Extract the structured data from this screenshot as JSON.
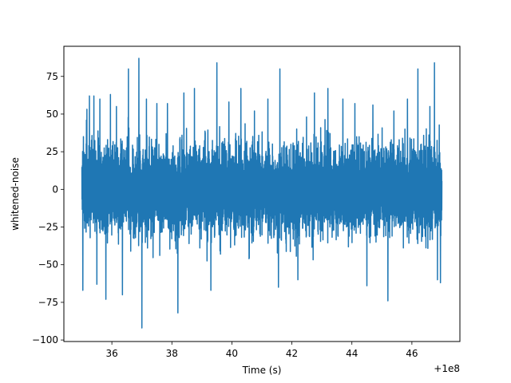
{
  "chart_data": {
    "type": "line",
    "title": "",
    "xlabel": "Time (s)",
    "ylabel": "whitened-noise",
    "x_offset_label": "+1e8",
    "xlim": [
      34.4,
      47.6
    ],
    "ylim": [
      -101,
      95
    ],
    "x_ticks": [
      36,
      38,
      40,
      42,
      44,
      46
    ],
    "y_ticks": [
      -100,
      -75,
      -50,
      -25,
      0,
      25,
      50,
      75
    ],
    "grid": false,
    "legend": "none",
    "series": [
      {
        "color": "#1f77b4",
        "x_range": [
          35.0,
          47.0
        ],
        "envelope_summary": {
          "typical_band": [
            -40,
            40
          ],
          "max": 87,
          "min": -92
        },
        "peaks": [
          {
            "x": 35.03,
            "y": -67
          },
          {
            "x": 35.05,
            "y": 35
          },
          {
            "x": 35.15,
            "y": 46
          },
          {
            "x": 35.25,
            "y": 62
          },
          {
            "x": 35.4,
            "y": 62
          },
          {
            "x": 35.5,
            "y": -63
          },
          {
            "x": 35.6,
            "y": 60
          },
          {
            "x": 35.8,
            "y": -73
          },
          {
            "x": 35.95,
            "y": 63
          },
          {
            "x": 36.15,
            "y": 55
          },
          {
            "x": 36.35,
            "y": -70
          },
          {
            "x": 36.55,
            "y": 80
          },
          {
            "x": 36.9,
            "y": 87
          },
          {
            "x": 37.0,
            "y": -92
          },
          {
            "x": 37.15,
            "y": 60
          },
          {
            "x": 37.5,
            "y": 57
          },
          {
            "x": 37.85,
            "y": 57
          },
          {
            "x": 38.2,
            "y": -82
          },
          {
            "x": 38.4,
            "y": 64
          },
          {
            "x": 38.75,
            "y": 67
          },
          {
            "x": 39.3,
            "y": -67
          },
          {
            "x": 39.5,
            "y": 84
          },
          {
            "x": 39.9,
            "y": 58
          },
          {
            "x": 40.3,
            "y": 67
          },
          {
            "x": 40.75,
            "y": 52
          },
          {
            "x": 41.2,
            "y": 60
          },
          {
            "x": 41.55,
            "y": -65
          },
          {
            "x": 41.6,
            "y": 80
          },
          {
            "x": 42.2,
            "y": -60
          },
          {
            "x": 42.75,
            "y": 64
          },
          {
            "x": 43.2,
            "y": 67
          },
          {
            "x": 43.7,
            "y": 60
          },
          {
            "x": 44.1,
            "y": 57
          },
          {
            "x": 44.5,
            "y": -64
          },
          {
            "x": 44.7,
            "y": 56
          },
          {
            "x": 45.2,
            "y": -74
          },
          {
            "x": 45.4,
            "y": 52
          },
          {
            "x": 45.85,
            "y": 60
          },
          {
            "x": 46.2,
            "y": 80
          },
          {
            "x": 46.6,
            "y": 55
          },
          {
            "x": 46.75,
            "y": 84
          },
          {
            "x": 46.85,
            "y": -60
          },
          {
            "x": 46.95,
            "y": -62
          }
        ]
      }
    ]
  }
}
